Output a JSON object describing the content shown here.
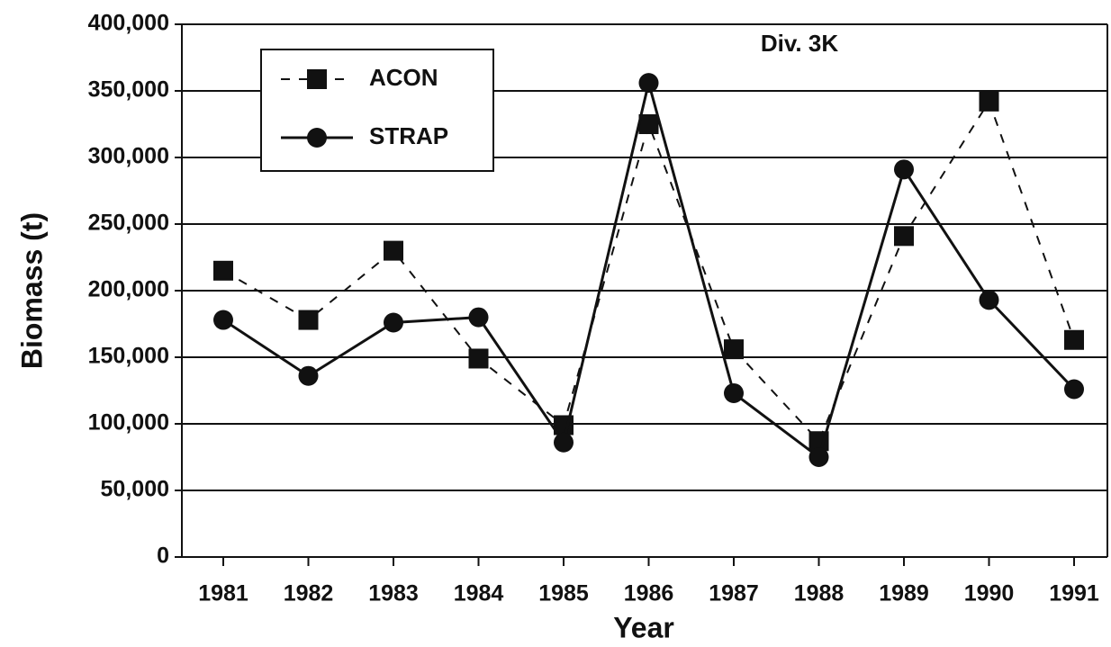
{
  "chart_data": {
    "type": "line",
    "x_label": "Year",
    "y_label": "Biomass (t)",
    "annotation": "Div. 3K",
    "categories": [
      "1981",
      "1982",
      "1983",
      "1984",
      "1985",
      "1986",
      "1987",
      "1988",
      "1989",
      "1990",
      "1991"
    ],
    "series": [
      {
        "name": "ACON",
        "color": "#111111",
        "values": [
          215000,
          178000,
          230000,
          149000,
          99000,
          325000,
          156000,
          87000,
          241000,
          342000,
          163000
        ]
      },
      {
        "name": "STRAP",
        "color": "#111111",
        "values": [
          178000,
          136000,
          176000,
          180000,
          86000,
          356000,
          123000,
          75000,
          291000,
          193000,
          126000
        ]
      }
    ],
    "ylim": [
      0,
      400000
    ],
    "yticks": [
      0,
      {
        "value": 50000,
        "label": "50,000"
      },
      {
        "value": 100000,
        "label": "100,000"
      },
      {
        "value": 150000,
        "label": "150,000"
      },
      {
        "value": 200000,
        "label": "200,000"
      },
      {
        "value": 250000,
        "label": "250,000"
      },
      {
        "value": 300000,
        "label": "300,000"
      },
      {
        "value": 350000,
        "label": "350,000"
      },
      {
        "value": 400000,
        "label": "400,000"
      }
    ],
    "grid": true,
    "legend": "upper left"
  }
}
